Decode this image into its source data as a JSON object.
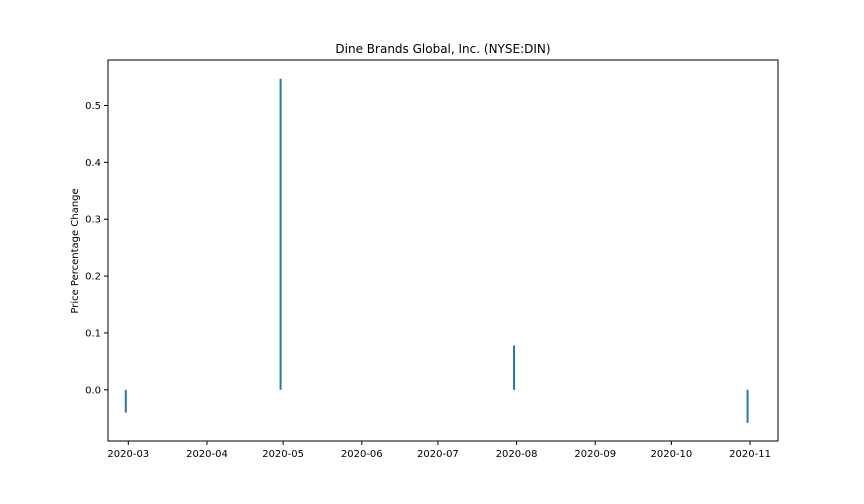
{
  "chart_data": {
    "type": "bar",
    "title": "Dine Brands Global, Inc. (NYSE:DIN)",
    "xlabel": "",
    "ylabel": "Price Percentage Change",
    "x_axis_type": "date",
    "xlim": [
      "2020-02-22",
      "2020-11-12"
    ],
    "ylim": [
      -0.09,
      0.58
    ],
    "x_ticks": [
      "2020-03",
      "2020-04",
      "2020-05",
      "2020-06",
      "2020-07",
      "2020-08",
      "2020-09",
      "2020-10",
      "2020-11"
    ],
    "y_ticks": [
      "0.0",
      "0.1",
      "0.2",
      "0.3",
      "0.4",
      "0.5"
    ],
    "grid": false,
    "bar_color": "#1f77b4",
    "points": [
      {
        "x": "2020-02-29",
        "y": -0.04
      },
      {
        "x": "2020-04-30",
        "y": 0.547
      },
      {
        "x": "2020-07-31",
        "y": 0.078
      },
      {
        "x": "2020-10-31",
        "y": -0.058
      }
    ]
  }
}
